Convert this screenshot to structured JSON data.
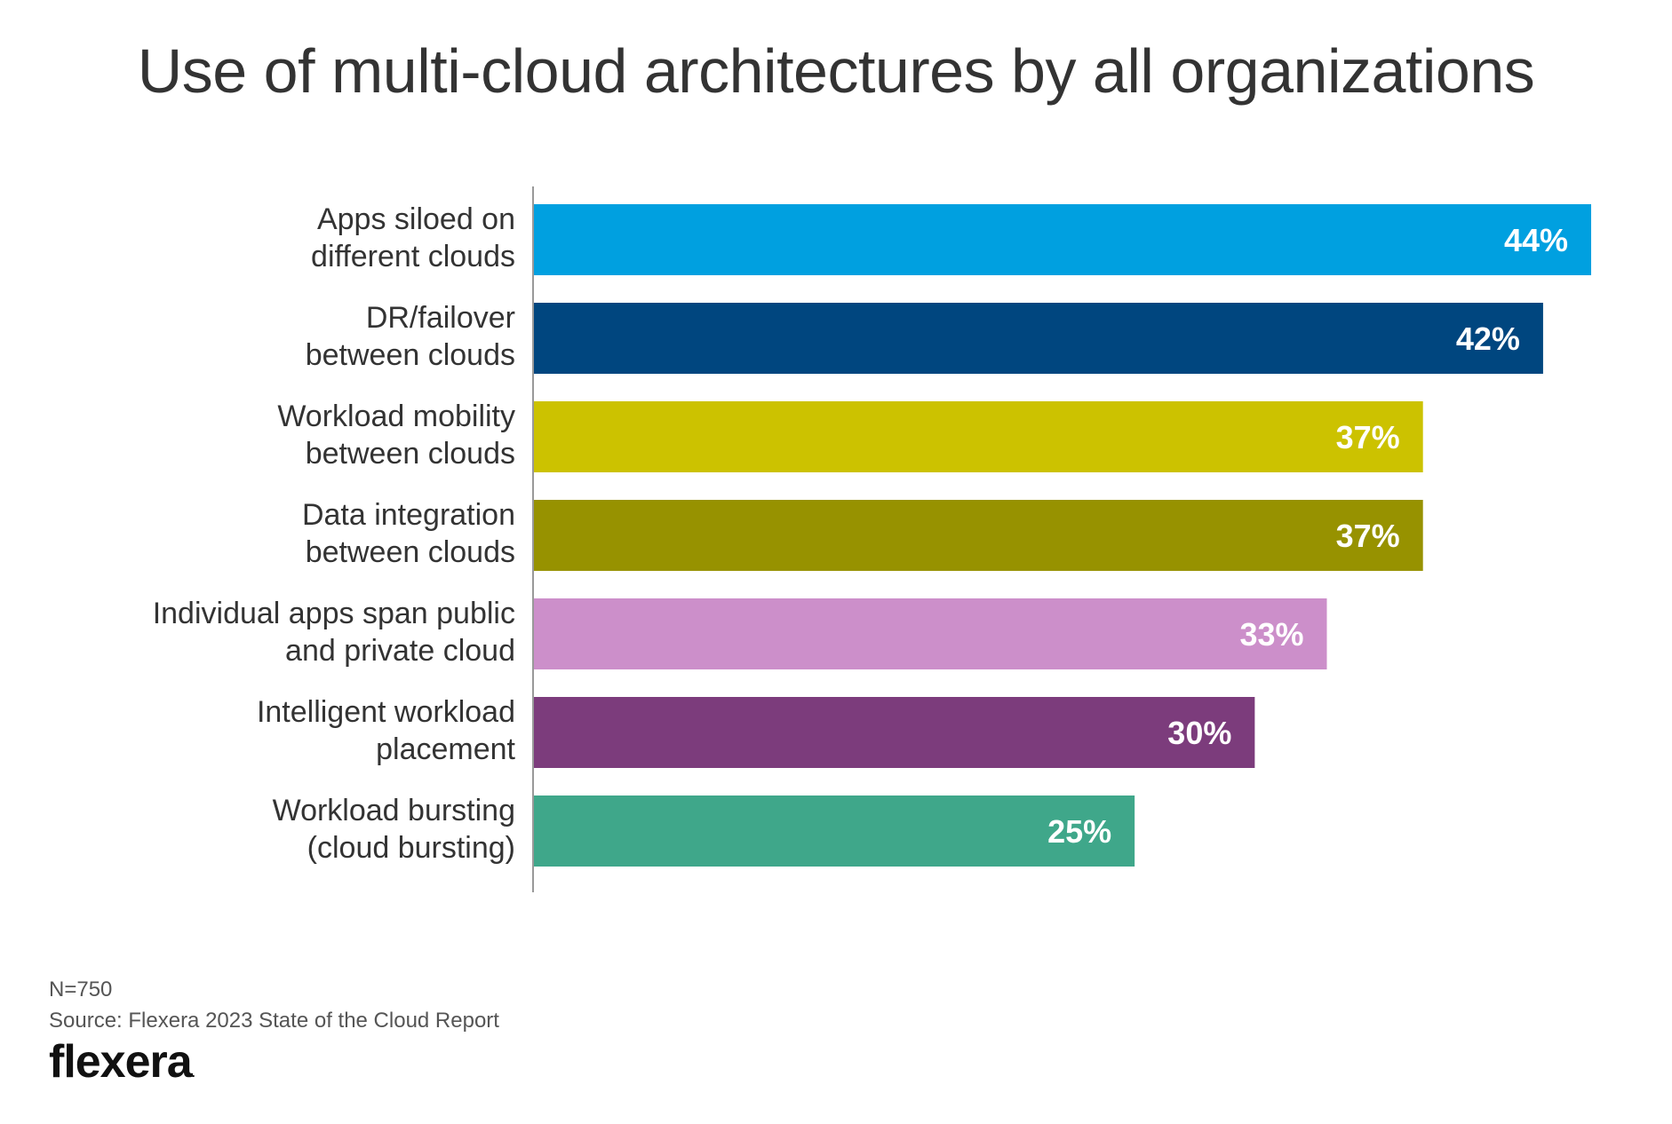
{
  "chart_data": {
    "type": "bar",
    "orientation": "horizontal",
    "title": "Use of multi-cloud architectures by all organizations",
    "categories": [
      [
        "Apps siloed on",
        "different clouds"
      ],
      [
        "DR/failover",
        "between clouds"
      ],
      [
        "Workload mobility",
        "between clouds"
      ],
      [
        "Data integration",
        "between clouds"
      ],
      [
        "Individual apps span public",
        "and private cloud"
      ],
      [
        "Intelligent workload",
        "placement"
      ],
      [
        "Workload bursting",
        "(cloud bursting)"
      ]
    ],
    "values": [
      44,
      42,
      37,
      37,
      33,
      30,
      25
    ],
    "value_labels": [
      "44%",
      "42%",
      "37%",
      "37%",
      "33%",
      "30%",
      "25%"
    ],
    "colors": [
      "#00a0e0",
      "#00467f",
      "#ccc200",
      "#979200",
      "#cc8fca",
      "#7c3c7c",
      "#3fa78a"
    ],
    "xlim": [
      0,
      44
    ],
    "grid": false,
    "legend": "none"
  },
  "footer": {
    "n": "N=750",
    "source": "Source: Flexera 2023 State of the Cloud Report"
  },
  "logo": {
    "text": "flexera",
    "mark": "."
  }
}
